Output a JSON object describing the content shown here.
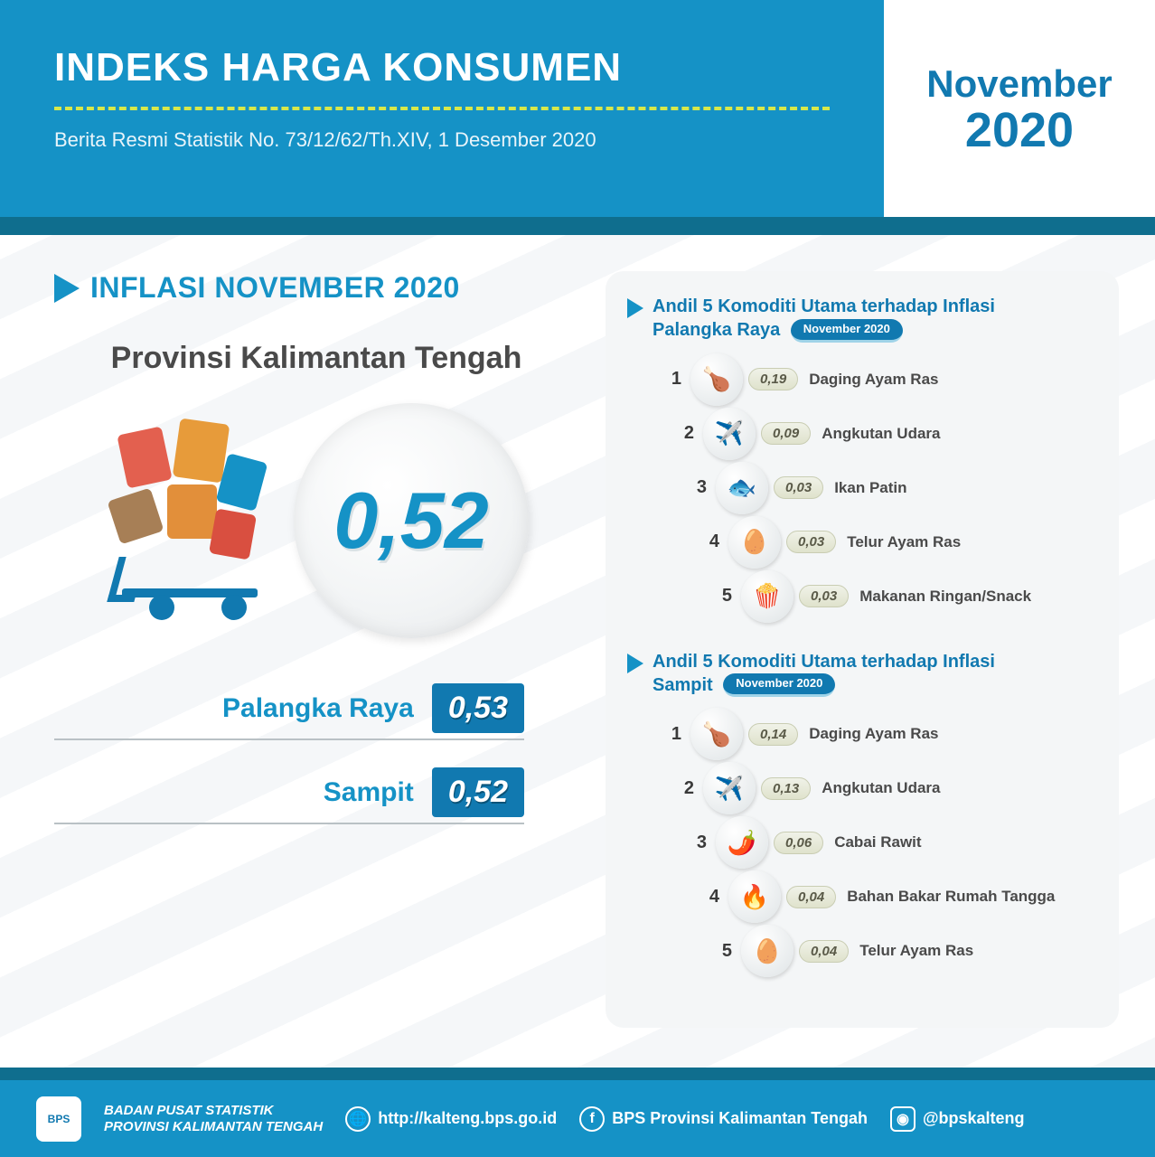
{
  "header": {
    "title": "INDEKS HARGA KONSUMEN",
    "subtitle": "Berita Resmi Statistik No. 73/12/62/Th.XIV, 1 Desember 2020",
    "month": "November",
    "year": "2020"
  },
  "section": {
    "title": "INFLASI NOVEMBER 2020",
    "province": "Provinsi Kalimantan Tengah",
    "main_value": "0,52"
  },
  "cities": [
    {
      "name": "Palangka Raya",
      "value": "0,53"
    },
    {
      "name": "Sampit",
      "value": "0,52"
    }
  ],
  "commodity_blocks": [
    {
      "title_line1": "Andil 5 Komoditi Utama terhadap Inflasi",
      "title_line2": "Palangka Raya",
      "pill": "November 2020",
      "items": [
        {
          "rank": "1",
          "value": "0,19",
          "name": "Daging Ayam Ras",
          "emoji": "🍗"
        },
        {
          "rank": "2",
          "value": "0,09",
          "name": "Angkutan Udara",
          "emoji": "✈️"
        },
        {
          "rank": "3",
          "value": "0,03",
          "name": "Ikan Patin",
          "emoji": "🐟"
        },
        {
          "rank": "4",
          "value": "0,03",
          "name": "Telur Ayam Ras",
          "emoji": "🥚"
        },
        {
          "rank": "5",
          "value": "0,03",
          "name": "Makanan Ringan/Snack",
          "emoji": "🍿"
        }
      ]
    },
    {
      "title_line1": "Andil 5 Komoditi Utama terhadap Inflasi",
      "title_line2": "Sampit",
      "pill": "November 2020",
      "items": [
        {
          "rank": "1",
          "value": "0,14",
          "name": "Daging Ayam Ras",
          "emoji": "🍗"
        },
        {
          "rank": "2",
          "value": "0,13",
          "name": "Angkutan Udara",
          "emoji": "✈️"
        },
        {
          "rank": "3",
          "value": "0,06",
          "name": "Cabai Rawit",
          "emoji": "🌶️"
        },
        {
          "rank": "4",
          "value": "0,04",
          "name": "Bahan Bakar Rumah Tangga",
          "emoji": "🔥"
        },
        {
          "rank": "5",
          "value": "0,04",
          "name": "Telur Ayam Ras",
          "emoji": "🥚"
        }
      ]
    }
  ],
  "footer": {
    "org_line1": "BADAN PUSAT STATISTIK",
    "org_line2": "PROVINSI KALIMANTAN TENGAH",
    "website": "http://kalteng.bps.go.id",
    "facebook": "BPS Provinsi Kalimantan Tengah",
    "instagram": "@bpskalteng",
    "logo_text": "BPS"
  },
  "colors": {
    "primary": "#1592c6",
    "primary_dark": "#1179b0",
    "teal": "#0f6e8e",
    "accent_dash": "#d7e84a",
    "text_dark": "#4a4a4a",
    "pill_bg": "#dfe2cc"
  }
}
